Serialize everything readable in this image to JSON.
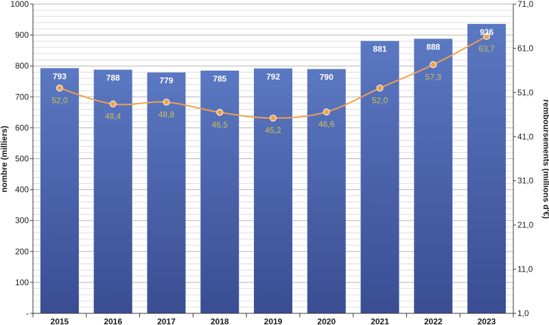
{
  "chart_data": {
    "type": "bar",
    "categories": [
      "2015",
      "2016",
      "2017",
      "2018",
      "2019",
      "2020",
      "2021",
      "2022",
      "2023"
    ],
    "series": [
      {
        "type": "bar",
        "axis": "left",
        "values": [
          793,
          788,
          779,
          785,
          792,
          790,
          881,
          888,
          936
        ],
        "value_labels": [
          "793",
          "788",
          "779",
          "785",
          "792",
          "790",
          "881",
          "888",
          "936"
        ],
        "color": "#4a63ad"
      },
      {
        "type": "line",
        "axis": "right",
        "values": [
          52.0,
          48.4,
          48.8,
          46.5,
          45.2,
          46.6,
          52.0,
          57.3,
          63.7
        ],
        "value_labels": [
          "52,0",
          "48,4",
          "48,8",
          "46,5",
          "45,2",
          "46,6",
          "52,0",
          "57,3",
          "63,7"
        ],
        "color": "#f0a24b",
        "label_color": "#c9c25a"
      }
    ],
    "ylabel": "nombre (milliers)",
    "y2label": "remboursements (millions d'€)",
    "ylim": [
      0,
      1000
    ],
    "y2lim": [
      1.0,
      71.0
    ],
    "yticks": [
      {
        "v": 0,
        "t": "-"
      },
      {
        "v": 100,
        "t": "100"
      },
      {
        "v": 200,
        "t": "200"
      },
      {
        "v": 300,
        "t": "300"
      },
      {
        "v": 400,
        "t": "400"
      },
      {
        "v": 500,
        "t": "500"
      },
      {
        "v": 600,
        "t": "600"
      },
      {
        "v": 700,
        "t": "700"
      },
      {
        "v": 800,
        "t": "800"
      },
      {
        "v": 900,
        "t": "900"
      },
      {
        "v": 1000,
        "t": "1000"
      }
    ],
    "y2ticks": [
      {
        "v": 1.0,
        "t": "1,0"
      },
      {
        "v": 11.0,
        "t": "11,0"
      },
      {
        "v": 21.0,
        "t": "21,0"
      },
      {
        "v": 31.0,
        "t": "31,0"
      },
      {
        "v": 41.0,
        "t": "41,0"
      },
      {
        "v": 51.0,
        "t": "51,0"
      },
      {
        "v": 61.0,
        "t": "61,0"
      },
      {
        "v": 71.0,
        "t": "71,0"
      }
    ],
    "grid": true,
    "legend": "none"
  }
}
